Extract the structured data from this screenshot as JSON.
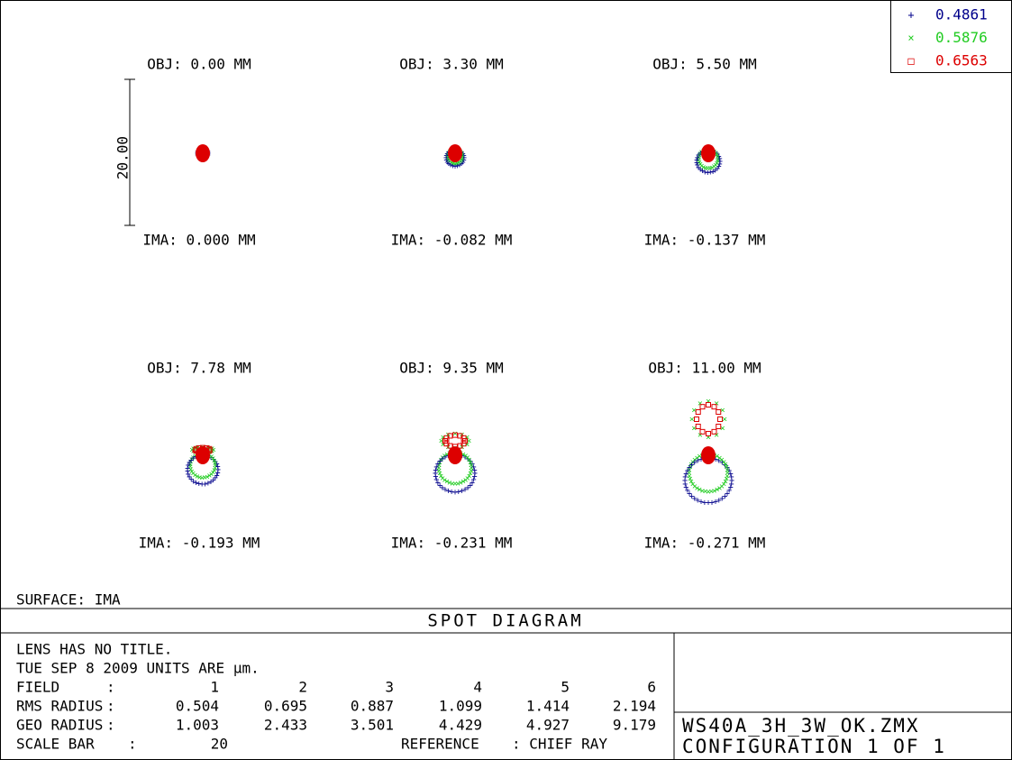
{
  "legend": [
    {
      "marker": "+",
      "label": "0.4861",
      "color": "#00008b"
    },
    {
      "marker": "×",
      "label": "0.5876",
      "color": "#22cc22"
    },
    {
      "marker": "□",
      "label": "0.6563",
      "color": "#dd0000"
    }
  ],
  "scale_bar_label": "20.00",
  "fields": [
    {
      "obj": "OBJ: 0.00 MM",
      "ima": "IMA: 0.000 MM"
    },
    {
      "obj": "OBJ: 3.30 MM",
      "ima": "IMA: -0.082 MM"
    },
    {
      "obj": "OBJ: 5.50 MM",
      "ima": "IMA: -0.137 MM"
    },
    {
      "obj": "OBJ: 7.78 MM",
      "ima": "IMA: -0.193 MM"
    },
    {
      "obj": "OBJ: 9.35 MM",
      "ima": "IMA: -0.231 MM"
    },
    {
      "obj": "OBJ: 11.00 MM",
      "ima": "IMA: -0.271 MM"
    }
  ],
  "surface": "SURFACE: IMA",
  "title": "SPOT DIAGRAM",
  "info": {
    "lens": "LENS HAS NO TITLE.",
    "date": "TUE SEP 8 2009  UNITS ARE µm.",
    "field_label": "FIELD",
    "sep": ":",
    "fields": [
      1,
      2,
      3,
      4,
      5,
      6
    ],
    "rms_label": "RMS RADIUS",
    "rms": [
      0.504,
      0.695,
      0.887,
      1.099,
      1.414,
      2.194
    ],
    "geo_label": "GEO RADIUS",
    "geo": [
      1.003,
      2.433,
      3.501,
      4.429,
      4.927,
      9.179
    ],
    "scale_label": "SCALE BAR",
    "scale": 20,
    "reference_label": "REFERENCE",
    "reference": ": CHIEF RAY"
  },
  "file": "WS40A_3H_3W_OK.ZMX",
  "configuration": "CONFIGURATION 1 OF 1"
}
